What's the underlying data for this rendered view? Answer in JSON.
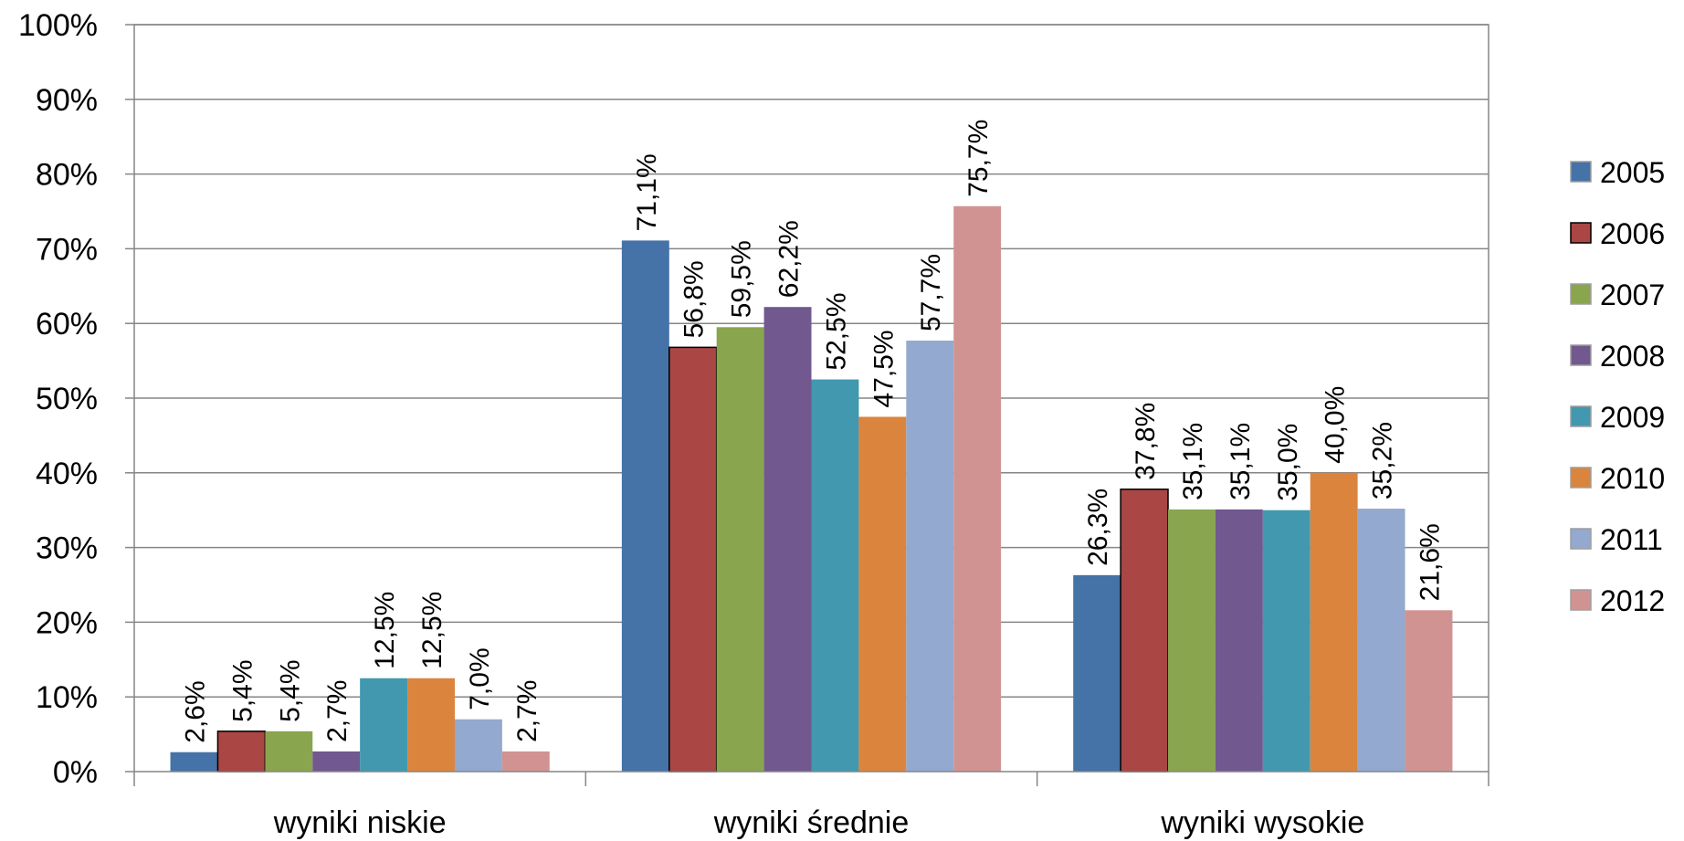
{
  "chart_data": {
    "type": "bar",
    "categories": [
      "wyniki niskie",
      "wyniki średnie",
      "wyniki wysokie"
    ],
    "series": [
      {
        "name": "2005",
        "color": "#4572A7",
        "values": [
          2.6,
          71.1,
          26.3
        ],
        "labels": [
          "2,6%",
          "71,1%",
          "26,3%"
        ]
      },
      {
        "name": "2006",
        "color": "#AA4643",
        "values": [
          5.4,
          56.8,
          37.8
        ],
        "labels": [
          "5,4%",
          "56,8%",
          "37,8%"
        ]
      },
      {
        "name": "2007",
        "color": "#89A54E",
        "values": [
          5.4,
          59.5,
          35.1
        ],
        "labels": [
          "5,4%",
          "59,5%",
          "35,1%"
        ]
      },
      {
        "name": "2008",
        "color": "#71588F",
        "values": [
          2.7,
          62.2,
          35.1
        ],
        "labels": [
          "2,7%",
          "62,2%",
          "35,1%"
        ]
      },
      {
        "name": "2009",
        "color": "#4198AF",
        "values": [
          12.5,
          52.5,
          35.0
        ],
        "labels": [
          "12,5%",
          "52,5%",
          "35,0%"
        ]
      },
      {
        "name": "2010",
        "color": "#DB843D",
        "values": [
          12.5,
          47.5,
          40.0
        ],
        "labels": [
          "12,5%",
          "47,5%",
          "40,0%"
        ]
      },
      {
        "name": "2011",
        "color": "#93A9CF",
        "values": [
          7.0,
          57.7,
          35.2
        ],
        "labels": [
          "7,0%",
          "57,7%",
          "35,2%"
        ]
      },
      {
        "name": "2012",
        "color": "#D19392",
        "values": [
          2.7,
          75.7,
          21.6
        ],
        "labels": [
          "2,7%",
          "75,7%",
          "21,6%"
        ]
      }
    ],
    "y_ticks": [
      "0%",
      "10%",
      "20%",
      "30%",
      "40%",
      "50%",
      "60%",
      "70%",
      "80%",
      "90%",
      "100%"
    ],
    "ylim": [
      0,
      100
    ],
    "grid": true,
    "legend": "right"
  }
}
